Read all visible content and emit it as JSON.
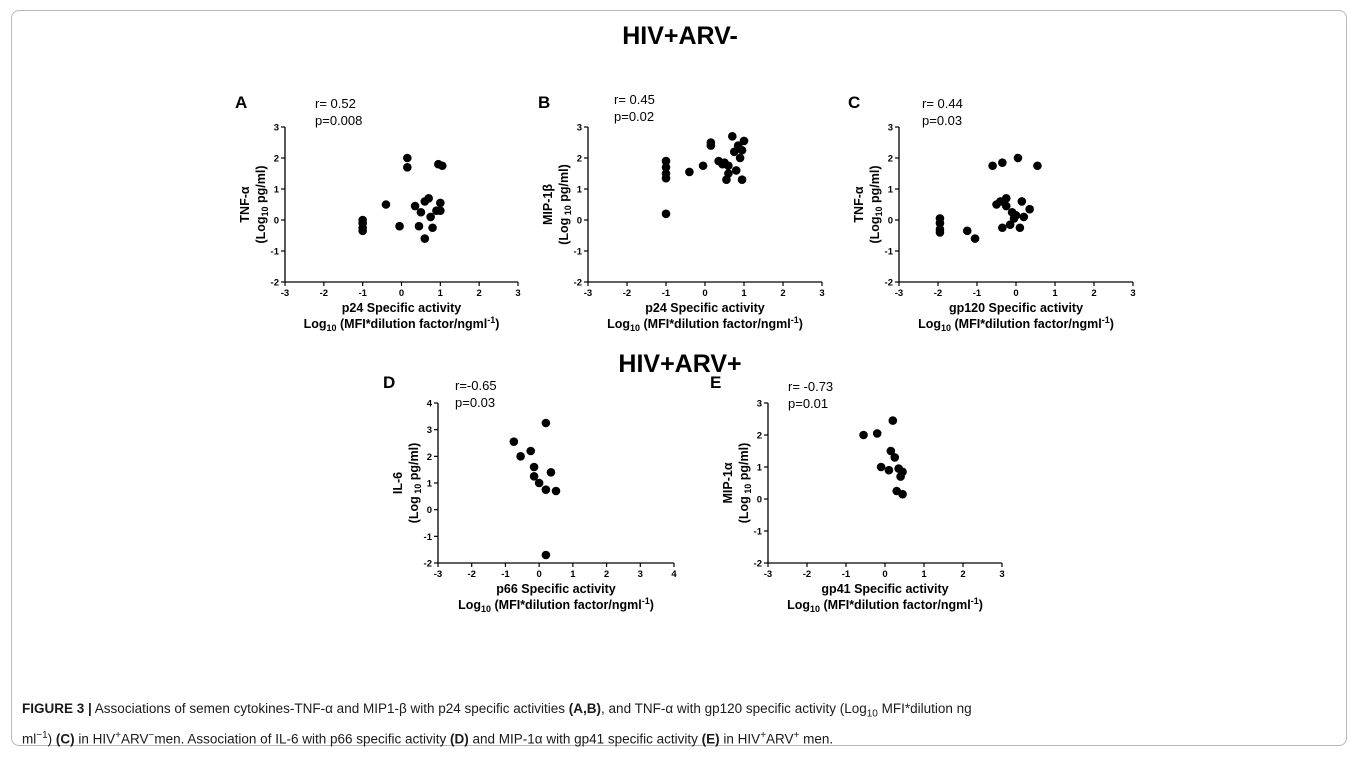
{
  "group_titles": [
    "HIV+ARV-",
    "HIV+ARV+"
  ],
  "caption": {
    "label": "FIGURE 3 |",
    "parts": [
      {
        "t": " Associations of semen cytokines-TNF-α and MIP1-β with p24 specific activities ",
        "b": false
      },
      {
        "t": "(A,B)",
        "b": true
      },
      {
        "t": ", and TNF-α with gp120 specific activity (Log",
        "b": false
      },
      {
        "t": "10",
        "b": false,
        "sub": true
      },
      {
        "t": " MFI*dilution ng",
        "b": false
      },
      {
        "br": true
      },
      {
        "t": "ml",
        "b": false
      },
      {
        "t": "−1",
        "b": false,
        "sup": true
      },
      {
        "t": ") ",
        "b": false
      },
      {
        "t": "(C)",
        "b": true
      },
      {
        "t": " in HIV",
        "b": false
      },
      {
        "t": "+",
        "b": false,
        "sup": true
      },
      {
        "t": "ARV",
        "b": false
      },
      {
        "t": "−",
        "b": false,
        "sup": true
      },
      {
        "t": "men. Association of IL-6 with p66 specific activity ",
        "b": false
      },
      {
        "t": "(D)",
        "b": true
      },
      {
        "t": " and MIP-1α with gp41 specific activity ",
        "b": false
      },
      {
        "t": "(E)",
        "b": true
      },
      {
        "t": " in HIV",
        "b": false
      },
      {
        "t": "+",
        "b": false,
        "sup": true
      },
      {
        "t": "ARV",
        "b": false
      },
      {
        "t": "+",
        "b": false,
        "sup": true
      },
      {
        "t": " men.",
        "b": false
      }
    ]
  },
  "chart_data": [
    {
      "panel": "A",
      "type": "scatter",
      "stats": [
        "r= 0.52",
        "p=0.008"
      ],
      "ylabel_top": "TNF-α",
      "ylabel_bottom": {
        "pre": "(Log",
        "sub": "10",
        "post": " pg/ml)"
      },
      "xlabel": "p24 Specific activity",
      "xlabel2": {
        "pre": "Log",
        "sub": "10",
        "mid": " (MFI*dilution factor/ngml",
        "sup": "-1",
        "post": ")"
      },
      "xlim": [
        -3,
        3
      ],
      "ylim": [
        -2,
        3
      ],
      "xticks": [
        -3,
        -2,
        -1,
        0,
        1,
        2,
        3
      ],
      "yticks": [
        -2,
        -1,
        0,
        1,
        2,
        3
      ],
      "points": [
        [
          -1.0,
          0.0
        ],
        [
          -1.0,
          -0.1
        ],
        [
          -1.0,
          -0.25
        ],
        [
          -1.0,
          -0.35
        ],
        [
          -0.4,
          0.5
        ],
        [
          -0.05,
          -0.2
        ],
        [
          0.15,
          2.0
        ],
        [
          0.15,
          1.7
        ],
        [
          0.35,
          0.45
        ],
        [
          0.45,
          -0.2
        ],
        [
          0.5,
          0.25
        ],
        [
          0.6,
          0.6
        ],
        [
          0.6,
          -0.6
        ],
        [
          0.7,
          0.7
        ],
        [
          0.75,
          0.1
        ],
        [
          0.8,
          -0.25
        ],
        [
          0.9,
          0.3
        ],
        [
          0.95,
          1.8
        ],
        [
          1.0,
          0.55
        ],
        [
          1.05,
          1.75
        ],
        [
          1.0,
          0.3
        ]
      ]
    },
    {
      "panel": "B",
      "type": "scatter",
      "stats": [
        "r= 0.45",
        "p=0.02"
      ],
      "ylabel_top": "MIP-1β",
      "ylabel_bottom": {
        "pre": "(Log",
        "sub": " 10",
        "post": " pg/ml)"
      },
      "xlabel": "p24 Specific activity",
      "xlabel2": {
        "pre": "Log",
        "sub": "10",
        "mid": " (MFI*dilution factor/ngml",
        "sup": "-1",
        "post": ")"
      },
      "xlim": [
        -3,
        3
      ],
      "ylim": [
        -2,
        3
      ],
      "xticks": [
        -3,
        -2,
        -1,
        0,
        1,
        2,
        3
      ],
      "yticks": [
        -2,
        -1,
        0,
        1,
        2,
        3
      ],
      "points": [
        [
          -1.0,
          1.9
        ],
        [
          -1.0,
          1.7
        ],
        [
          -1.0,
          1.5
        ],
        [
          -1.0,
          1.35
        ],
        [
          -1.0,
          0.2
        ],
        [
          -0.4,
          1.55
        ],
        [
          -0.05,
          1.75
        ],
        [
          0.15,
          2.5
        ],
        [
          0.15,
          2.4
        ],
        [
          0.35,
          1.9
        ],
        [
          0.45,
          1.8
        ],
        [
          0.5,
          1.85
        ],
        [
          0.55,
          1.3
        ],
        [
          0.6,
          1.75
        ],
        [
          0.6,
          1.5
        ],
        [
          0.7,
          2.7
        ],
        [
          0.75,
          2.2
        ],
        [
          0.8,
          1.6
        ],
        [
          0.85,
          2.4
        ],
        [
          0.9,
          2.0
        ],
        [
          0.95,
          1.3
        ],
        [
          1.0,
          2.55
        ],
        [
          0.95,
          2.25
        ]
      ]
    },
    {
      "panel": "C",
      "type": "scatter",
      "stats": [
        "r= 0.44",
        "p=0.03"
      ],
      "ylabel_top": "TNF-α",
      "ylabel_bottom": {
        "pre": "(Log",
        "sub": "10",
        "post": " pg/ml)"
      },
      "xlabel": "gp120 Specific activity",
      "xlabel2": {
        "pre": "Log",
        "sub": "10",
        "mid": " (MFI*dilution factor/ngml",
        "sup": "-1",
        "post": ")"
      },
      "xlim": [
        -3,
        3
      ],
      "ylim": [
        -2,
        3
      ],
      "xticks": [
        -3,
        -2,
        -1,
        0,
        1,
        2,
        3
      ],
      "yticks": [
        -2,
        -1,
        0,
        1,
        2,
        3
      ],
      "points": [
        [
          -1.95,
          0.05
        ],
        [
          -1.95,
          -0.1
        ],
        [
          -1.95,
          -0.3
        ],
        [
          -1.95,
          -0.4
        ],
        [
          -1.25,
          -0.35
        ],
        [
          -1.05,
          -0.6
        ],
        [
          -0.6,
          1.75
        ],
        [
          -0.5,
          0.5
        ],
        [
          -0.4,
          0.6
        ],
        [
          -0.35,
          1.85
        ],
        [
          -0.35,
          -0.25
        ],
        [
          -0.25,
          0.7
        ],
        [
          -0.25,
          0.45
        ],
        [
          -0.15,
          -0.15
        ],
        [
          -0.1,
          0.25
        ],
        [
          -0.05,
          0.05
        ],
        [
          0.0,
          0.15
        ],
        [
          0.05,
          2.0
        ],
        [
          0.1,
          -0.25
        ],
        [
          0.15,
          0.6
        ],
        [
          0.2,
          0.1
        ],
        [
          0.35,
          0.35
        ],
        [
          0.55,
          1.75
        ]
      ]
    },
    {
      "panel": "D",
      "type": "scatter",
      "stats": [
        "r=-0.65",
        "p=0.03"
      ],
      "ylabel_top": "IL-6",
      "ylabel_bottom": {
        "pre": "(Log",
        "sub": " 10",
        "post": " pg/ml)"
      },
      "xlabel": "p66 Specific activity",
      "xlabel2": {
        "pre": "Log",
        "sub": "10",
        "mid": " (MFI*dilution factor/ngml",
        "sup": "-1",
        "post": ")"
      },
      "xlim": [
        -3,
        4
      ],
      "ylim": [
        -2,
        4
      ],
      "xticks": [
        -3,
        -2,
        -1,
        0,
        1,
        2,
        3,
        4
      ],
      "yticks": [
        -2,
        -1,
        0,
        1,
        2,
        3,
        4
      ],
      "points": [
        [
          -0.75,
          2.55
        ],
        [
          -0.55,
          2.0
        ],
        [
          -0.25,
          2.2
        ],
        [
          -0.15,
          1.6
        ],
        [
          -0.15,
          1.25
        ],
        [
          0.0,
          1.0
        ],
        [
          0.2,
          3.25
        ],
        [
          0.2,
          0.75
        ],
        [
          0.35,
          1.4
        ],
        [
          0.5,
          0.7
        ],
        [
          0.2,
          -1.7
        ]
      ]
    },
    {
      "panel": "E",
      "type": "scatter",
      "stats": [
        "r= -0.73",
        "p=0.01"
      ],
      "ylabel_top": "MIP-1α",
      "ylabel_bottom": {
        "pre": "(Log",
        "sub": " 10",
        "post": " pg/ml)"
      },
      "xlabel": "gp41 Specific activity",
      "xlabel2": {
        "pre": "Log",
        "sub": "10",
        "mid": " (MFI*dilution factor/ngml",
        "sup": "-1",
        "post": ")"
      },
      "xlim": [
        -3,
        3
      ],
      "ylim": [
        -2,
        3
      ],
      "xticks": [
        -3,
        -2,
        -1,
        0,
        1,
        2,
        3
      ],
      "yticks": [
        -2,
        -1,
        0,
        1,
        2,
        3
      ],
      "points": [
        [
          -0.55,
          2.0
        ],
        [
          -0.2,
          2.05
        ],
        [
          -0.1,
          1.0
        ],
        [
          0.1,
          0.9
        ],
        [
          0.15,
          1.5
        ],
        [
          0.2,
          2.45
        ],
        [
          0.25,
          1.3
        ],
        [
          0.3,
          0.25
        ],
        [
          0.35,
          0.95
        ],
        [
          0.4,
          0.7
        ],
        [
          0.45,
          0.85
        ],
        [
          0.45,
          0.15
        ]
      ]
    }
  ]
}
